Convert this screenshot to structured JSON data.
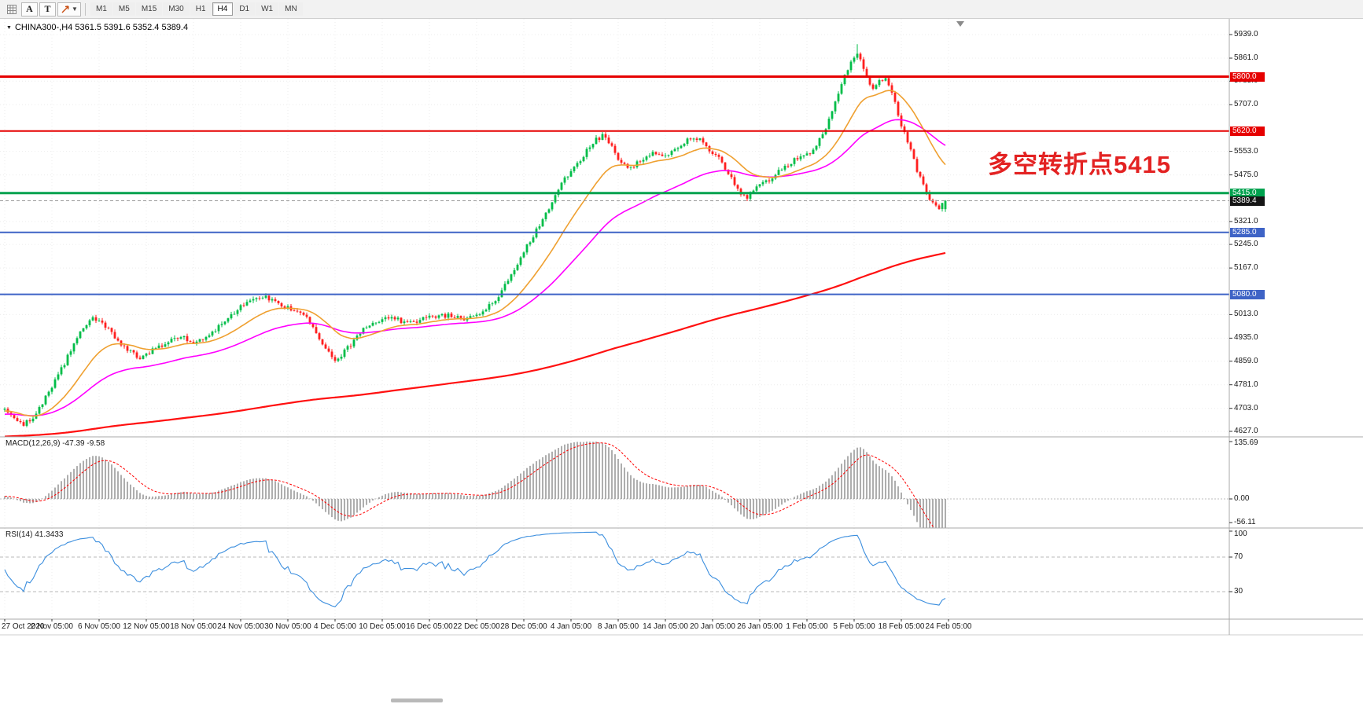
{
  "toolbar": {
    "a_label": "A",
    "t_label": "T",
    "timeframes": [
      {
        "label": "M1",
        "active": false
      },
      {
        "label": "M5",
        "active": false
      },
      {
        "label": "M15",
        "active": false
      },
      {
        "label": "M30",
        "active": false
      },
      {
        "label": "H1",
        "active": false
      },
      {
        "label": "H4",
        "active": true
      },
      {
        "label": "D1",
        "active": false
      },
      {
        "label": "W1",
        "active": false
      },
      {
        "label": "MN",
        "active": false
      }
    ]
  },
  "symbol_header": {
    "marker": "▼",
    "title": "CHINA300-,H4 5361.5 5391.6 5352.4 5389.4"
  },
  "annotation": {
    "text": "多空转折点5415",
    "color": "#e32222"
  },
  "price_axis": {
    "ticks": [
      {
        "text": "5939.0",
        "v": 5939.0
      },
      {
        "text": "5861.0",
        "v": 5861.0
      },
      {
        "text": "5785.0",
        "v": 5785.0
      },
      {
        "text": "5707.0",
        "v": 5707.0
      },
      {
        "text": "5553.0",
        "v": 5553.0
      },
      {
        "text": "5475.0",
        "v": 5475.0
      },
      {
        "text": "5321.0",
        "v": 5321.0
      },
      {
        "text": "5245.0",
        "v": 5245.0
      },
      {
        "text": "5167.0",
        "v": 5167.0
      },
      {
        "text": "5013.0",
        "v": 5013.0
      },
      {
        "text": "4935.0",
        "v": 4935.0
      },
      {
        "text": "4859.0",
        "v": 4859.0
      },
      {
        "text": "4781.0",
        "v": 4781.0
      },
      {
        "text": "4703.0",
        "v": 4703.0
      },
      {
        "text": "4627.0",
        "v": 4627.0
      }
    ],
    "bid": {
      "text": "5389.4",
      "v": 5389.4,
      "bg": "#151515",
      "fg": "#ffffff"
    }
  },
  "panels": {
    "macd": {
      "label": "MACD(12,26,9) -47.39 -9.58",
      "axis_labels": [
        {
          "text": "135.69",
          "v": 135.69
        },
        {
          "text": "0.00",
          "v": 0
        },
        {
          "text": "-56.11",
          "v": -56.11
        }
      ],
      "histogram_color": "#9a9a9a",
      "signal_color": "#ff0000"
    },
    "rsi": {
      "label": "RSI(14) 41.3433",
      "axis_labels": [
        {
          "text": "100",
          "v": 100
        },
        {
          "text": "70",
          "v": 70
        },
        {
          "text": "30",
          "v": 30
        }
      ],
      "levels": [
        70,
        30
      ],
      "line_color": "#3b8ede"
    }
  },
  "time_axis": {
    "labels": [
      "27 Oct 2020",
      "2 Nov 05:00",
      "6 Nov 05:00",
      "12 Nov 05:00",
      "18 Nov 05:00",
      "24 Nov 05:00",
      "30 Nov 05:00",
      "4 Dec 05:00",
      "10 Dec 05:00",
      "16 Dec 05:00",
      "22 Dec 05:00",
      "28 Dec 05:00",
      "4 Jan 05:00",
      "8 Jan 05:00",
      "14 Jan 05:00",
      "20 Jan 05:00",
      "26 Jan 05:00",
      "1 Feb 05:00",
      "5 Feb 05:00",
      "18 Feb 05:00",
      "24 Feb 05:00"
    ]
  },
  "chart_data": {
    "type": "candlestick",
    "symbol": "CHINA300-",
    "timeframe": "H4",
    "title": "CHINA300-,H4",
    "last_ohlc": {
      "open": 5361.5,
      "high": 5391.6,
      "low": 5352.4,
      "close": 5389.4
    },
    "y_range": [
      4627.0,
      5939.0
    ],
    "x_range": [
      "27 Oct 2020",
      "24 Feb 05:00"
    ],
    "bull_color": "#00bd48",
    "bear_color": "#ff1f1f",
    "num_bars": 300,
    "price_keyframes": [
      [
        0.0,
        4700
      ],
      [
        0.008,
        4668
      ],
      [
        0.02,
        4648
      ],
      [
        0.033,
        4685
      ],
      [
        0.048,
        4760
      ],
      [
        0.063,
        4850
      ],
      [
        0.078,
        4942
      ],
      [
        0.092,
        5002
      ],
      [
        0.103,
        4988
      ],
      [
        0.115,
        4945
      ],
      [
        0.13,
        4898
      ],
      [
        0.145,
        4868
      ],
      [
        0.16,
        4902
      ],
      [
        0.175,
        4926
      ],
      [
        0.19,
        4936
      ],
      [
        0.205,
        4918
      ],
      [
        0.22,
        4955
      ],
      [
        0.235,
        4992
      ],
      [
        0.25,
        5040
      ],
      [
        0.263,
        5068
      ],
      [
        0.278,
        5072
      ],
      [
        0.293,
        5048
      ],
      [
        0.308,
        5022
      ],
      [
        0.322,
        5002
      ],
      [
        0.338,
        4918
      ],
      [
        0.352,
        4862
      ],
      [
        0.368,
        4912
      ],
      [
        0.383,
        4972
      ],
      [
        0.398,
        4992
      ],
      [
        0.413,
        5002
      ],
      [
        0.428,
        4986
      ],
      [
        0.443,
        4996
      ],
      [
        0.458,
        5006
      ],
      [
        0.473,
        5012
      ],
      [
        0.488,
        4996
      ],
      [
        0.503,
        5012
      ],
      [
        0.518,
        5048
      ],
      [
        0.533,
        5112
      ],
      [
        0.548,
        5202
      ],
      [
        0.563,
        5282
      ],
      [
        0.578,
        5362
      ],
      [
        0.59,
        5442
      ],
      [
        0.603,
        5492
      ],
      [
        0.616,
        5542
      ],
      [
        0.628,
        5592
      ],
      [
        0.638,
        5608
      ],
      [
        0.65,
        5538
      ],
      [
        0.662,
        5492
      ],
      [
        0.675,
        5522
      ],
      [
        0.688,
        5548
      ],
      [
        0.7,
        5532
      ],
      [
        0.712,
        5558
      ],
      [
        0.725,
        5588
      ],
      [
        0.737,
        5598
      ],
      [
        0.75,
        5558
      ],
      [
        0.762,
        5518
      ],
      [
        0.775,
        5448
      ],
      [
        0.787,
        5396
      ],
      [
        0.8,
        5432
      ],
      [
        0.812,
        5458
      ],
      [
        0.825,
        5492
      ],
      [
        0.837,
        5518
      ],
      [
        0.85,
        5542
      ],
      [
        0.862,
        5562
      ],
      [
        0.875,
        5645
      ],
      [
        0.888,
        5765
      ],
      [
        0.9,
        5855
      ],
      [
        0.908,
        5882
      ],
      [
        0.916,
        5798
      ],
      [
        0.924,
        5752
      ],
      [
        0.931,
        5788
      ],
      [
        0.938,
        5796
      ],
      [
        0.946,
        5715
      ],
      [
        0.953,
        5642
      ],
      [
        0.961,
        5576
      ],
      [
        0.969,
        5498
      ],
      [
        0.977,
        5438
      ],
      [
        0.985,
        5386
      ],
      [
        0.993,
        5362
      ],
      [
        1.0,
        5389.4
      ]
    ],
    "horizontal_levels": [
      {
        "value": 5800.0,
        "label": "5800.0",
        "color": "#e60000",
        "width": 3
      },
      {
        "value": 5620.0,
        "label": "5620.0",
        "color": "#e60000",
        "width": 2
      },
      {
        "value": 5415.0,
        "label": "5415.0",
        "color": "#00a24f",
        "width": 3
      },
      {
        "value": 5285.0,
        "label": "5285.0",
        "color": "#3e63c6",
        "width": 2
      },
      {
        "value": 5080.0,
        "label": "5080.0",
        "color": "#3e63c6",
        "width": 2
      }
    ],
    "moving_averages": [
      {
        "name": "fast",
        "type": "ema",
        "period": 21,
        "color": "#efa030",
        "width": 1.6
      },
      {
        "name": "medium",
        "type": "ema",
        "period": 55,
        "color": "#ff00ff",
        "width": 1.6
      },
      {
        "name": "slow",
        "type": "sma",
        "period": 300,
        "color": "#ff1010",
        "width": 2.2
      }
    ],
    "indicators": [
      {
        "name": "MACD",
        "params": [
          12,
          26,
          9
        ],
        "current": [
          -47.39,
          -9.58
        ],
        "scale_max": 135.69,
        "scale_min": -56.11
      },
      {
        "name": "RSI",
        "params": [
          14
        ],
        "current": 41.3433,
        "levels": [
          70,
          30
        ],
        "scale": [
          0,
          100
        ]
      }
    ]
  }
}
